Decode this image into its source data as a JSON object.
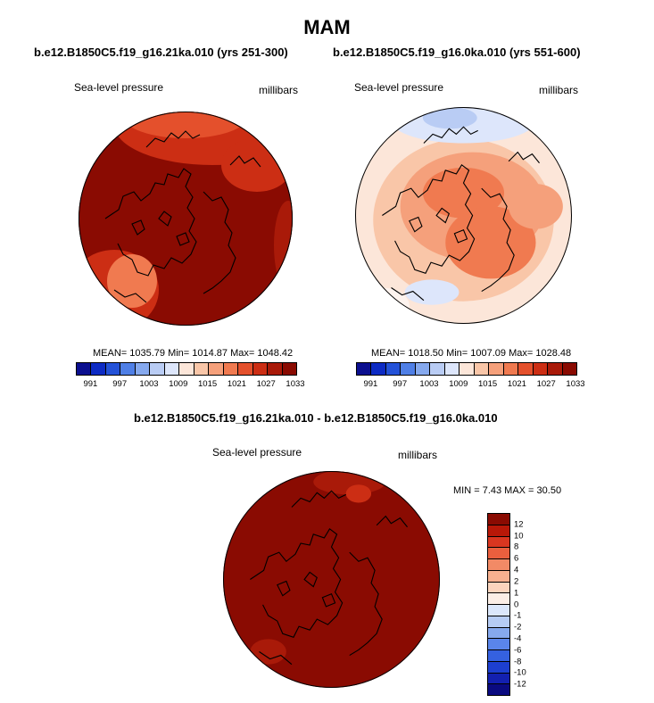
{
  "season": "MAM",
  "panels": [
    {
      "title": "b.e12.B1850C5.f19_g16.21ka.010 (yrs 251-300)",
      "variable": "Sea-level pressure",
      "units": "millibars",
      "mean_label": "MEAN= 1035.79  Min= 1014.87  Max= 1048.42",
      "mean": 1035.79,
      "min": 1014.87,
      "max": 1048.42
    },
    {
      "title": "b.e12.B1850C5.f19_g16.0ka.010 (yrs 551-600)",
      "variable": "Sea-level pressure",
      "units": "millibars",
      "mean_label": "MEAN= 1018.50  Min= 1007.09  Max= 1028.48",
      "mean": 1018.5,
      "min": 1007.09,
      "max": 1028.48
    }
  ],
  "colorbar": {
    "ticks": [
      "991",
      "997",
      "1003",
      "1009",
      "1015",
      "1021",
      "1027",
      "1033"
    ],
    "colors": [
      "#0b0f8f",
      "#0d2bc4",
      "#2452d8",
      "#4f7fe6",
      "#86a9ee",
      "#b9ccf4",
      "#dde6fb",
      "#fce6d9",
      "#f9c6a8",
      "#f5a07b",
      "#f07a50",
      "#e4502c",
      "#cc2e14",
      "#a91a09",
      "#8a0b02"
    ]
  },
  "difference": {
    "title": "b.e12.B1850C5.f19_g16.21ka.010 - b.e12.B1850C5.f19_g16.0ka.010",
    "variable": "Sea-level pressure",
    "units": "millibars",
    "minmax_label": "MIN =   7.43 MAX =  30.50",
    "min": 7.43,
    "max": 30.5,
    "levels": [
      "12",
      "10",
      "8",
      "6",
      "4",
      "2",
      "1",
      "0",
      "-1",
      "-2",
      "-4",
      "-6",
      "-8",
      "-10",
      "-12"
    ],
    "colors": [
      "#0a0a80",
      "#1320b0",
      "#1d3fd0",
      "#3561e0",
      "#5a85ea",
      "#86a9ee",
      "#b6ccf4",
      "#dbe7fb",
      "#fbeee6",
      "#fbd4bd",
      "#f7b08f",
      "#f28a66",
      "#ea5f3e",
      "#d93620",
      "#b81808",
      "#8a0b02"
    ]
  },
  "map_colors": {
    "dark": "#8a0b02",
    "red1": "#a91a09",
    "red2": "#cc2e14",
    "red3": "#e4502c",
    "orange": "#f07a50",
    "salmon": "#f5a07b",
    "peach": "#f9c6a8",
    "pale": "#fce6d9",
    "white": "#fdf3ee",
    "lblue": "#dde6fb",
    "blue": "#b9ccf4"
  }
}
